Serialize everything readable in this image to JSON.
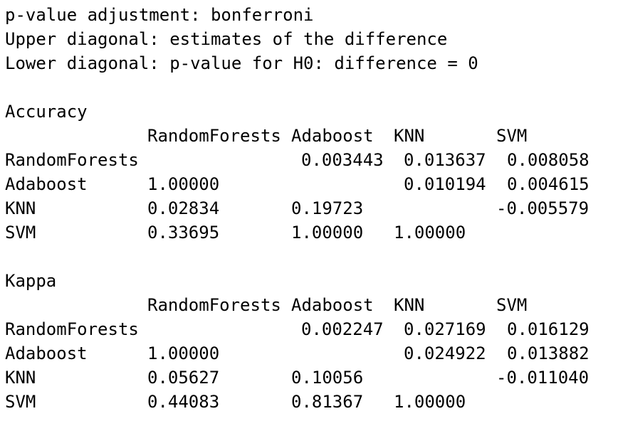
{
  "header": {
    "line1": "p-value adjustment: bonferroni",
    "line2": "Upper diagonal: estimates of the difference",
    "line3": "Lower diagonal: p-value for H0: difference = 0"
  },
  "tables": [
    {
      "title": "Accuracy",
      "columns": [
        "RandomForests",
        "Adaboost",
        "KNN",
        "SVM"
      ],
      "rows": [
        {
          "name": "RandomForests",
          "c1": "",
          "c2": "0.003443",
          "c3": "0.013637",
          "c4": "0.008058"
        },
        {
          "name": "Adaboost",
          "c1": "1.00000",
          "c2": "",
          "c3": "0.010194",
          "c4": "0.004615"
        },
        {
          "name": "KNN",
          "c1": "0.02834",
          "c2": "0.19723",
          "c3": "",
          "c4": "-0.005579"
        },
        {
          "name": "SVM",
          "c1": "0.33695",
          "c2": "1.00000",
          "c3": "1.00000",
          "c4": ""
        }
      ]
    },
    {
      "title": "Kappa",
      "columns": [
        "RandomForests",
        "Adaboost",
        "KNN",
        "SVM"
      ],
      "rows": [
        {
          "name": "RandomForests",
          "c1": "",
          "c2": "0.002247",
          "c3": "0.027169",
          "c4": "0.016129"
        },
        {
          "name": "Adaboost",
          "c1": "1.00000",
          "c2": "",
          "c3": "0.024922",
          "c4": "0.013882"
        },
        {
          "name": "KNN",
          "c1": "0.05627",
          "c2": "0.10056",
          "c3": "",
          "c4": "-0.011040"
        },
        {
          "name": "SVM",
          "c1": "0.44083",
          "c2": "0.81367",
          "c3": "1.00000",
          "c4": ""
        }
      ]
    }
  ]
}
